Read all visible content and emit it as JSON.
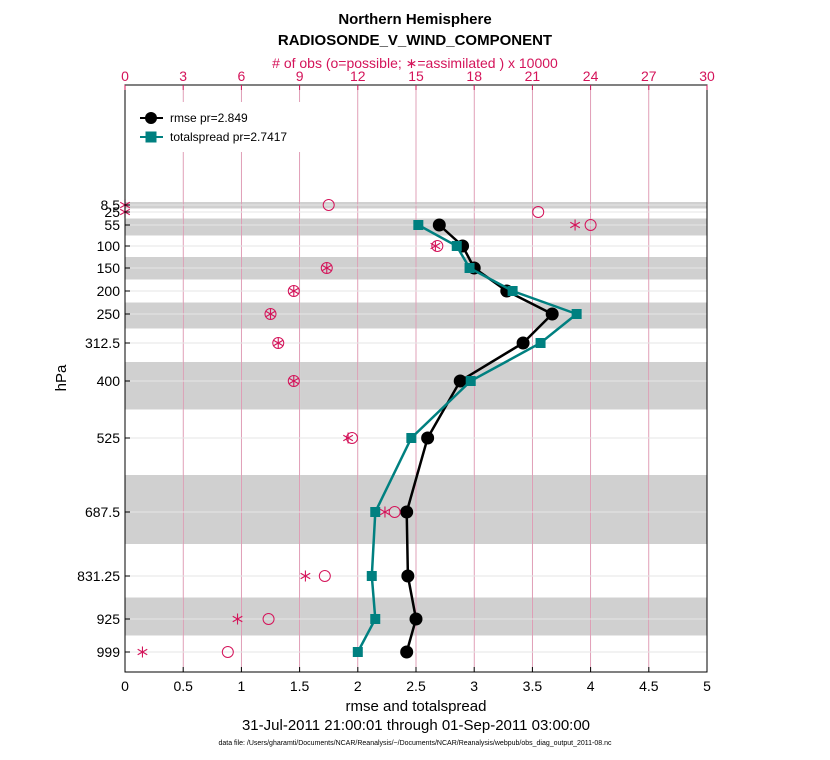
{
  "titles": {
    "line1": "Northern Hemisphere",
    "line2": "RADIOSONDE_V_WIND_COMPONENT",
    "top_axis_label": "# of obs (o=possible; ∗=assimilated ) x 10000"
  },
  "axes": {
    "xlabel": "rmse and totalspread",
    "ylabel": "hPa",
    "date_range": "31-Jul-2011 21:00:01 through 01-Sep-2011 03:00:00",
    "data_file": "data file: /Users/gharamti/Documents/NCAR/Reanalysis/~/Documents/NCAR/Reanalysis/webpub/obs_diag_output_2011-08.nc"
  },
  "colors": {
    "rmse": "#000000",
    "spread": "#008080",
    "obs": "#d4145a",
    "band": "#d0d0d0",
    "grid": "#e6e6e6"
  },
  "chart_data": {
    "type": "line",
    "x_range": [
      0,
      5
    ],
    "x_ticks": [
      "0",
      "0.5",
      "1",
      "1.5",
      "2",
      "2.5",
      "3",
      "3.5",
      "4",
      "4.5",
      "5"
    ],
    "top_x_range": [
      0,
      30
    ],
    "top_x_ticks": [
      "0",
      "3",
      "6",
      "9",
      "12",
      "15",
      "18",
      "21",
      "24",
      "27",
      "30"
    ],
    "y_levels": [
      8.5,
      25,
      55,
      100,
      150,
      200,
      250,
      312.5,
      400,
      525,
      687.5,
      831.25,
      925,
      999
    ],
    "y_tick_labels": [
      "8.5",
      "25",
      "55",
      "100",
      "150",
      "200",
      "250",
      "312.5",
      "400",
      "525",
      "687.5",
      "831.25",
      "925",
      "999"
    ],
    "y_scale": "inverted pressure",
    "grid": true,
    "legend_position": "top-left",
    "series": [
      {
        "name": "rmse pr=2.849",
        "marker": "circle",
        "points": [
          {
            "level": 55,
            "x": 2.7
          },
          {
            "level": 100,
            "x": 2.9
          },
          {
            "level": 150,
            "x": 3.0
          },
          {
            "level": 200,
            "x": 3.28
          },
          {
            "level": 250,
            "x": 3.67
          },
          {
            "level": 312.5,
            "x": 3.42
          },
          {
            "level": 400,
            "x": 2.88
          },
          {
            "level": 525,
            "x": 2.6
          },
          {
            "level": 687.5,
            "x": 2.42
          },
          {
            "level": 831.25,
            "x": 2.43
          },
          {
            "level": 925,
            "x": 2.5
          },
          {
            "level": 999,
            "x": 2.42
          }
        ]
      },
      {
        "name": "totalspread pr=2.7417",
        "marker": "square",
        "points": [
          {
            "level": 55,
            "x": 2.52
          },
          {
            "level": 100,
            "x": 2.85
          },
          {
            "level": 150,
            "x": 2.96
          },
          {
            "level": 200,
            "x": 3.33
          },
          {
            "level": 250,
            "x": 3.88
          },
          {
            "level": 312.5,
            "x": 3.57
          },
          {
            "level": 400,
            "x": 2.97
          },
          {
            "level": 525,
            "x": 2.46
          },
          {
            "level": 687.5,
            "x": 2.15
          },
          {
            "level": 831.25,
            "x": 2.12
          },
          {
            "level": 925,
            "x": 2.15
          },
          {
            "level": 999,
            "x": 2.0
          }
        ]
      }
    ],
    "obs_counts_x10000": [
      {
        "level": 8.5,
        "possible": 10.5,
        "assimilated": 0.0
      },
      {
        "level": 25,
        "possible": 21.3,
        "assimilated": 0.0
      },
      {
        "level": 55,
        "possible": 24.0,
        "assimilated": 23.2
      },
      {
        "level": 100,
        "possible": 16.1,
        "assimilated": 16.0
      },
      {
        "level": 150,
        "possible": 10.4,
        "assimilated": 10.4
      },
      {
        "level": 200,
        "possible": 8.7,
        "assimilated": 8.7
      },
      {
        "level": 250,
        "possible": 7.5,
        "assimilated": 7.5
      },
      {
        "level": 312.5,
        "possible": 7.9,
        "assimilated": 7.9
      },
      {
        "level": 400,
        "possible": 8.7,
        "assimilated": 8.7
      },
      {
        "level": 525,
        "possible": 11.7,
        "assimilated": 11.5
      },
      {
        "level": 687.5,
        "possible": 13.9,
        "assimilated": 13.4
      },
      {
        "level": 831.25,
        "possible": 10.3,
        "assimilated": 9.3
      },
      {
        "level": 925,
        "possible": 7.4,
        "assimilated": 5.8
      },
      {
        "level": 999,
        "possible": 5.3,
        "assimilated": 0.9
      }
    ]
  }
}
